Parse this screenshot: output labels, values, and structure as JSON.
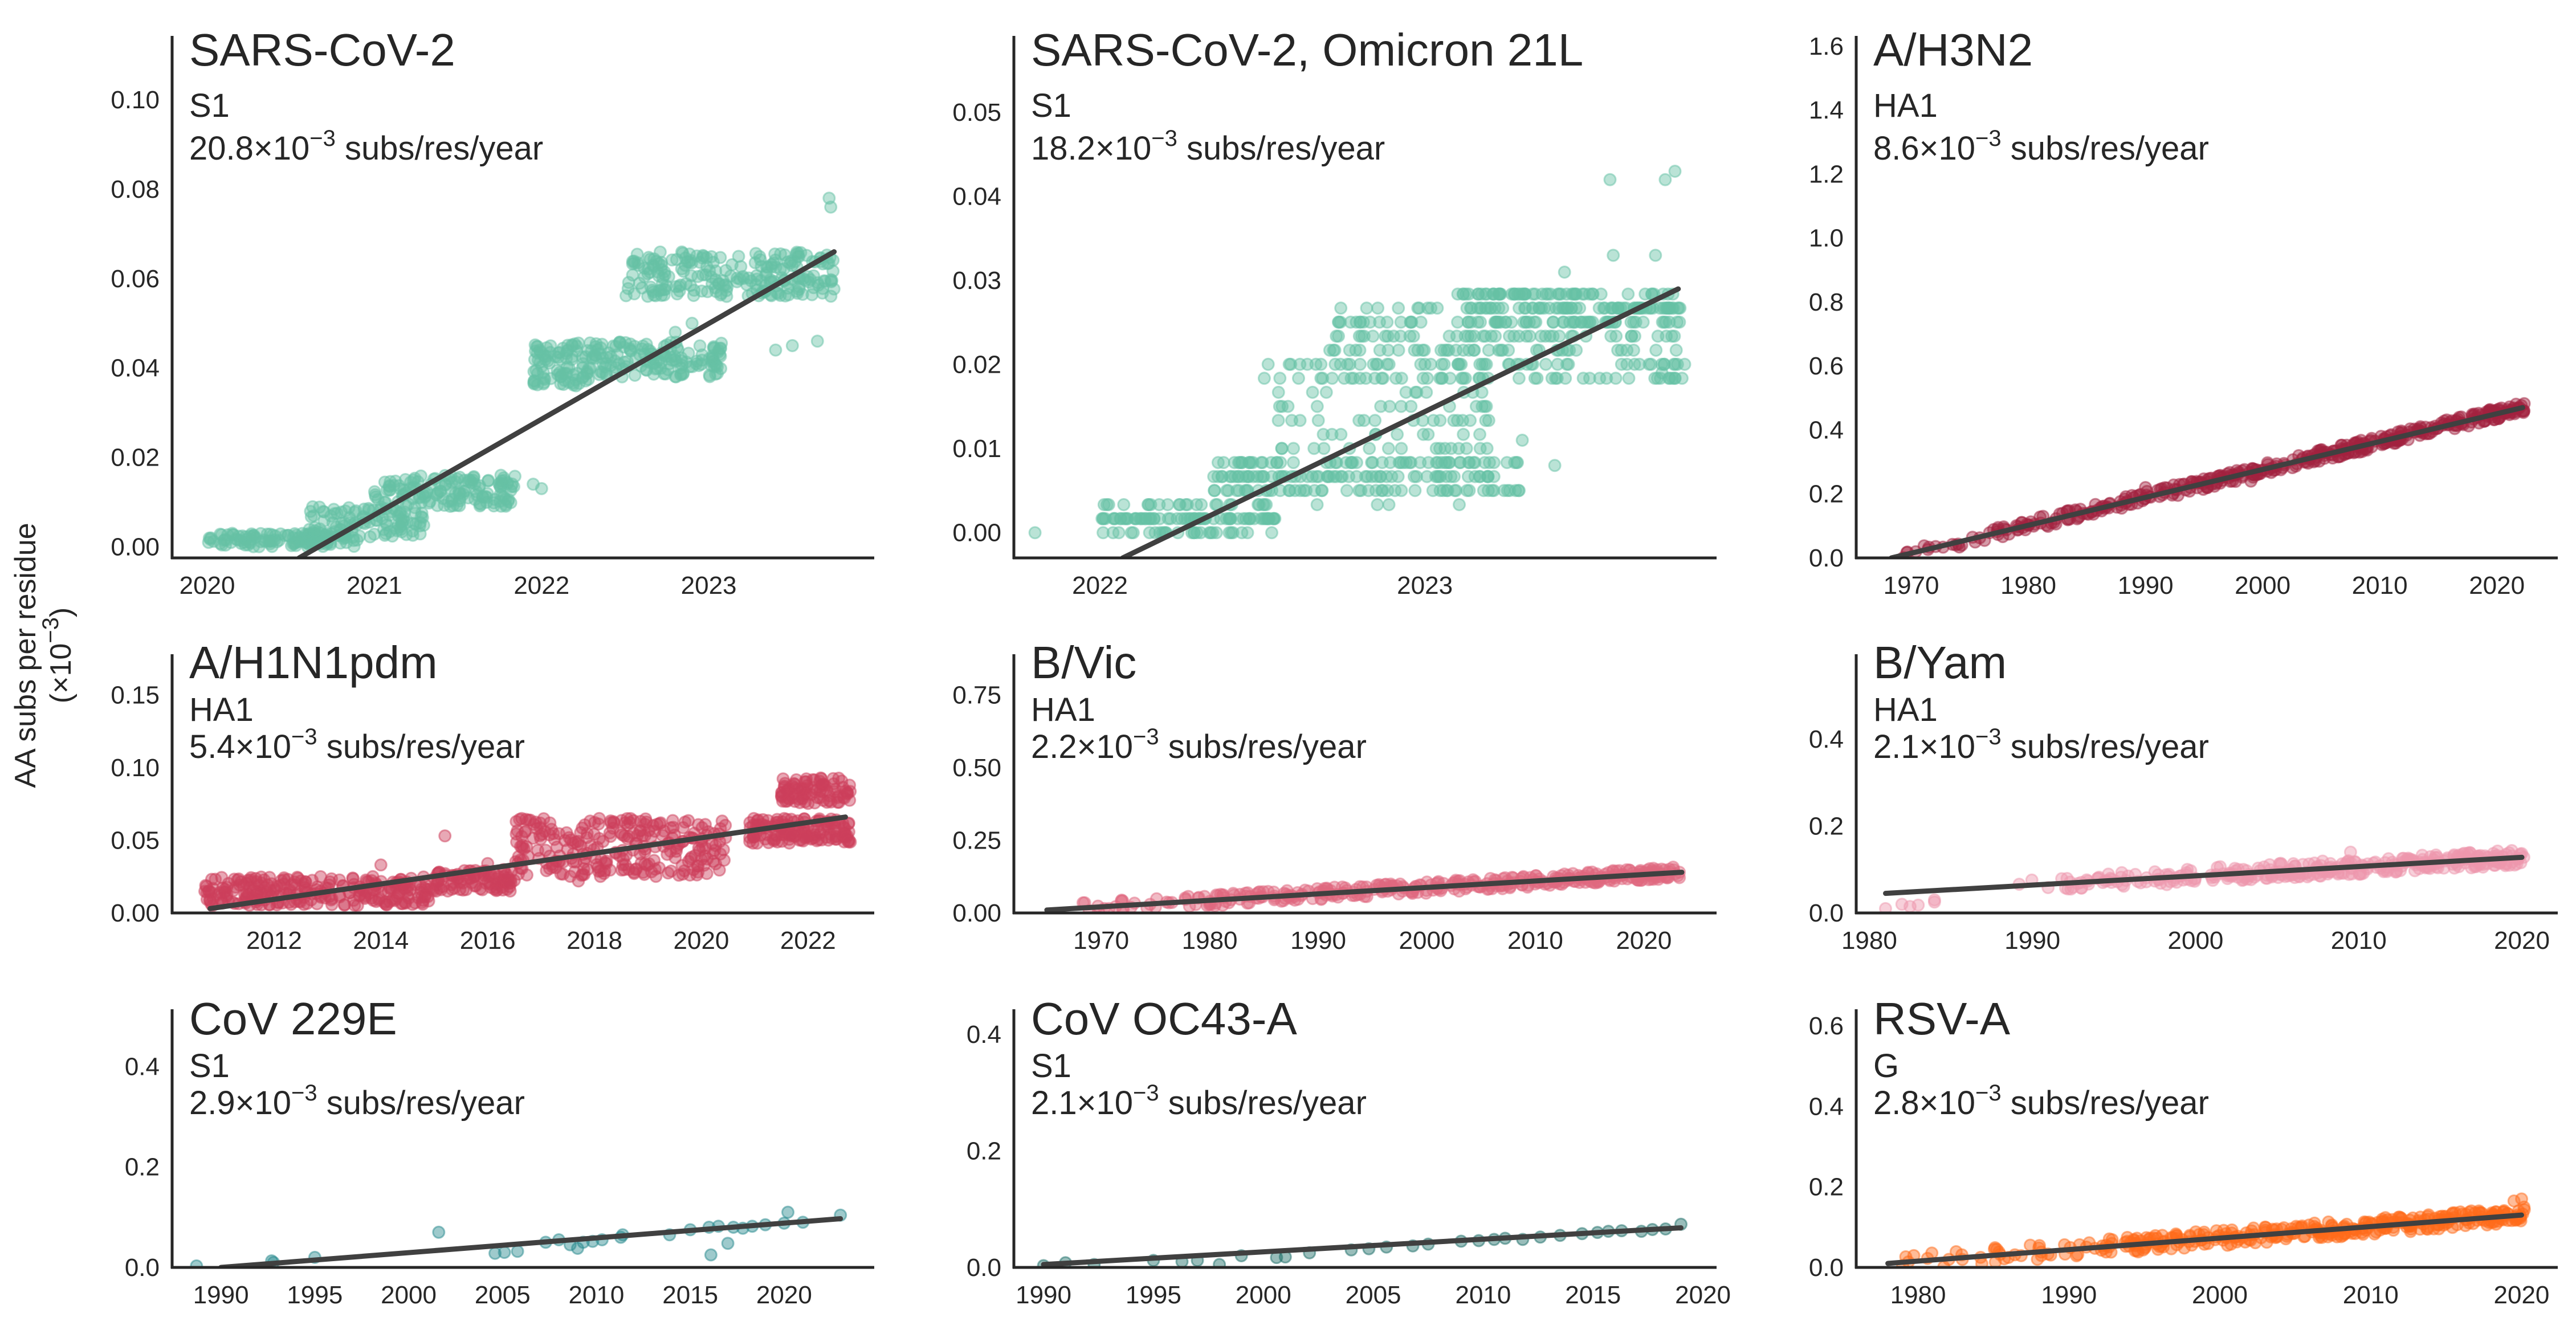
{
  "figure": {
    "ylabel_line1": "AA subs per residue",
    "ylabel_line2": "(×10",
    "ylabel_exp": "−3",
    "ylabel_close": ")",
    "fit_line_color": "#404040"
  },
  "chart_data": [
    {
      "type": "scatter",
      "title": "SARS-CoV-2",
      "subtitle": "S1",
      "rate_mantissa": "20.8",
      "rate_unit": "subs/res/year",
      "rate_label": "20.8×10^-3 subs/res/year",
      "xlabel": "",
      "ylabel": "AA subs per residue (×10^-3)",
      "color": "#66c2a5",
      "xlim": [
        2019.79,
        2023.99
      ],
      "ylim": [
        -0.0025,
        0.1143
      ],
      "xticks": [
        2020,
        2021,
        2022,
        2023
      ],
      "xtick_labels": [
        "2020",
        "2021",
        "2022",
        "2023"
      ],
      "yticks": [
        0.0,
        0.02,
        0.04,
        0.06,
        0.08,
        0.1
      ],
      "ytick_labels": [
        "0.00",
        "0.02",
        "0.04",
        "0.06",
        "0.08",
        "0.10"
      ],
      "fit_line": {
        "slope_per_year": 0.0208,
        "x": [
          2020.55,
          2023.75
        ],
        "y": [
          -0.0025,
          0.066
        ]
      },
      "clusters": [
        {
          "x": [
            2020.0,
            2020.9
          ],
          "y": [
            0.0,
            0.003
          ],
          "n": 120
        },
        {
          "x": [
            2020.6,
            2021.3
          ],
          "y": [
            0.002,
            0.009
          ],
          "n": 110
        },
        {
          "x": [
            2021.0,
            2021.85
          ],
          "y": [
            0.009,
            0.016
          ],
          "n": 140
        },
        {
          "x": [
            2021.95,
            2022.3
          ],
          "y": [
            0.036,
            0.046
          ],
          "n": 90
        },
        {
          "x": [
            2022.3,
            2023.1
          ],
          "y": [
            0.038,
            0.046
          ],
          "n": 140
        },
        {
          "x": [
            2022.5,
            2023.75
          ],
          "y": [
            0.056,
            0.066
          ],
          "n": 220
        }
      ],
      "outliers": [
        [
          2023.72,
          0.078
        ],
        [
          2023.73,
          0.076
        ],
        [
          2023.65,
          0.046
        ],
        [
          2023.4,
          0.044
        ],
        [
          2023.5,
          0.045
        ],
        [
          2021.95,
          0.014
        ],
        [
          2022.0,
          0.013
        ],
        [
          2020.15,
          0.003
        ],
        [
          2022.9,
          0.05
        ],
        [
          2022.8,
          0.048
        ]
      ]
    },
    {
      "type": "scatter",
      "title": "SARS-CoV-2, Omicron 21L",
      "subtitle": "S1",
      "rate_mantissa": "18.2",
      "rate_unit": "subs/res/year",
      "rate_label": "18.2×10^-3 subs/res/year",
      "color": "#66c2a5",
      "xlim": [
        2021.735,
        2023.898
      ],
      "ylim": [
        -0.003,
        0.0591
      ],
      "xticks": [
        2022,
        2023
      ],
      "xtick_labels": [
        "2022",
        "2023"
      ],
      "yticks": [
        0.0,
        0.01,
        0.02,
        0.03,
        0.04,
        0.05
      ],
      "ytick_labels": [
        "0.00",
        "0.01",
        "0.02",
        "0.03",
        "0.04",
        "0.05"
      ],
      "fit_line": {
        "slope_per_year": 0.0182,
        "x": [
          2022.07,
          2023.78
        ],
        "y": [
          -0.003,
          0.029
        ]
      },
      "levels_step": 0.00167,
      "clusters": [
        {
          "x": [
            2022.0,
            2022.55
          ],
          "y": [
            0.0,
            0.003
          ],
          "n": 120
        },
        {
          "x": [
            2022.35,
            2023.3
          ],
          "y": [
            0.004,
            0.009
          ],
          "n": 180
        },
        {
          "x": [
            2022.5,
            2023.2
          ],
          "y": [
            0.009,
            0.021
          ],
          "n": 110
        },
        {
          "x": [
            2022.7,
            2023.8
          ],
          "y": [
            0.018,
            0.027
          ],
          "n": 220
        },
        {
          "x": [
            2023.1,
            2023.8
          ],
          "y": [
            0.025,
            0.029
          ],
          "n": 140
        }
      ],
      "outliers": [
        [
          2021.8,
          0.0
        ],
        [
          2023.57,
          0.042
        ],
        [
          2023.74,
          0.042
        ],
        [
          2023.77,
          0.043
        ],
        [
          2023.58,
          0.033
        ],
        [
          2023.71,
          0.033
        ],
        [
          2023.43,
          0.031
        ],
        [
          2023.73,
          0.019
        ],
        [
          2023.3,
          0.011
        ],
        [
          2023.4,
          0.008
        ]
      ]
    },
    {
      "type": "scatter",
      "title": "A/H3N2",
      "subtitle": "HA1",
      "rate_mantissa": "8.6",
      "rate_unit": "subs/res/year",
      "rate_label": "8.6×10^-3 subs/res/year",
      "color": "#a2213f",
      "xlim": [
        1965.3,
        2025.2
      ],
      "ylim": [
        0.0,
        1.632
      ],
      "xticks": [
        1970,
        1980,
        1990,
        2000,
        2010,
        2020
      ],
      "xtick_labels": [
        "1970",
        "1980",
        "1990",
        "2000",
        "2010",
        "2020"
      ],
      "yticks": [
        0.0,
        0.2,
        0.4,
        0.6,
        0.8,
        1.0,
        1.2,
        1.4,
        1.6
      ],
      "ytick_labels": [
        "0.0",
        "0.2",
        "0.4",
        "0.6",
        "0.8",
        "1.0",
        "1.2",
        "1.4",
        "1.6"
      ],
      "fit_line": {
        "slope_per_year": 0.0086,
        "x": [
          1968.3,
          2022.2
        ],
        "y": [
          0.0,
          0.47
        ]
      },
      "band": {
        "x": [
          1968.0,
          2022.4
        ],
        "spread": 0.018,
        "n": 420
      },
      "outliers": [
        [
          1990.0,
          0.22
        ],
        [
          1999.0,
          0.24
        ],
        [
          1997.5,
          0.26
        ]
      ]
    },
    {
      "type": "scatter",
      "title": "A/H1N1pdm",
      "subtitle": "HA1",
      "rate_mantissa": "5.4",
      "rate_unit": "subs/res/year",
      "rate_label": "5.4×10^-3 subs/res/year",
      "color": "#cd3f5c",
      "xlim": [
        2010.09,
        2023.24
      ],
      "ylim": [
        0.0,
        0.178
      ],
      "xticks": [
        2012,
        2014,
        2016,
        2018,
        2020,
        2022
      ],
      "xtick_labels": [
        "2012",
        "2014",
        "2016",
        "2018",
        "2020",
        "2022"
      ],
      "yticks": [
        0.0,
        0.05,
        0.1,
        0.15
      ],
      "ytick_labels": [
        "0.00",
        "0.05",
        "0.10",
        "0.15"
      ],
      "fit_line": {
        "slope_per_year": 0.0054,
        "x": [
          2010.8,
          2022.7
        ],
        "y": [
          0.003,
          0.066
        ]
      },
      "clusters": [
        {
          "x": [
            2010.7,
            2015.0
          ],
          "y": [
            0.005,
            0.025
          ],
          "n": 260
        },
        {
          "x": [
            2015.0,
            2016.5
          ],
          "y": [
            0.015,
            0.03
          ],
          "n": 90
        },
        {
          "x": [
            2016.5,
            2020.5
          ],
          "y": [
            0.025,
            0.065
          ],
          "n": 260
        },
        {
          "x": [
            2020.9,
            2022.8
          ],
          "y": [
            0.048,
            0.065
          ],
          "n": 140
        },
        {
          "x": [
            2021.5,
            2022.8
          ],
          "y": [
            0.075,
            0.093
          ],
          "n": 90
        }
      ],
      "outliers": [
        [
          2015.2,
          0.053
        ],
        [
          2014.0,
          0.033
        ],
        [
          2016.0,
          0.034
        ],
        [
          2017.7,
          0.022
        ]
      ]
    },
    {
      "type": "scatter",
      "title": "B/Vic",
      "subtitle": "HA1",
      "rate_mantissa": "2.2",
      "rate_unit": "subs/res/year",
      "rate_label": "2.2×10^-3 subs/res/year",
      "color": "#e0687f",
      "xlim": [
        1961.96,
        2026.7
      ],
      "ylim": [
        0.0,
        0.89
      ],
      "xticks": [
        1970,
        1980,
        1990,
        2000,
        2010,
        2020
      ],
      "xtick_labels": [
        "1970",
        "1980",
        "1990",
        "2000",
        "2010",
        "2020"
      ],
      "yticks": [
        0.0,
        0.25,
        0.5,
        0.75
      ],
      "ytick_labels": [
        "0.00",
        "0.25",
        "0.50",
        "0.75"
      ],
      "fit_line": {
        "slope_per_year": 0.0022,
        "x": [
          1965.0,
          2023.5
        ],
        "y": [
          0.01,
          0.14
        ]
      },
      "band": {
        "x": [
          1965.0,
          2023.6
        ],
        "spread": 0.02,
        "n": 360
      },
      "outliers": [
        [
          1980.0,
          0.04
        ],
        [
          1975.0,
          0.02
        ]
      ]
    },
    {
      "type": "scatter",
      "title": "B/Yam",
      "subtitle": "HA1",
      "rate_mantissa": "2.1",
      "rate_unit": "subs/res/year",
      "rate_label": "2.1×10^-3 subs/res/year",
      "color": "#ee97ad",
      "xlim": [
        1979.2,
        2022.2
      ],
      "ylim": [
        0.0,
        0.595
      ],
      "xticks": [
        1980,
        1990,
        2000,
        2010,
        2020
      ],
      "xtick_labels": [
        "1980",
        "1990",
        "2000",
        "2010",
        "2020"
      ],
      "yticks": [
        0.0,
        0.2,
        0.4
      ],
      "ytick_labels": [
        "0.0",
        "0.2",
        "0.4"
      ],
      "fit_line": {
        "slope_per_year": 0.0021,
        "x": [
          1981.0,
          2020.0
        ],
        "y": [
          0.045,
          0.128
        ]
      },
      "band": {
        "x": [
          1989.0,
          2020.2
        ],
        "spread": 0.018,
        "n": 330
      },
      "outliers": [
        [
          1981.0,
          0.01
        ],
        [
          1982.0,
          0.02
        ],
        [
          1982.5,
          0.015
        ],
        [
          1983.0,
          0.018
        ],
        [
          1984.0,
          0.025
        ],
        [
          1984.0,
          0.03
        ],
        [
          2009.5,
          0.14
        ]
      ]
    },
    {
      "type": "scatter",
      "title": "CoV 229E",
      "subtitle": "S1",
      "rate_mantissa": "2.9",
      "rate_unit": "subs/res/year",
      "rate_label": "2.9×10^-3 subs/res/year",
      "color": "#27898e",
      "xlim": [
        1987.4,
        2024.8
      ],
      "ylim": [
        0.0,
        0.514
      ],
      "xticks": [
        1990,
        1995,
        2000,
        2005,
        2010,
        2015,
        2020
      ],
      "xtick_labels": [
        "1990",
        "1995",
        "2000",
        "2005",
        "2010",
        "2015",
        "2020"
      ],
      "yticks": [
        0.0,
        0.2,
        0.4
      ],
      "ytick_labels": [
        "0.0",
        "0.2",
        "0.4"
      ],
      "fit_line": {
        "slope_per_year": 0.0029,
        "x": [
          1990.0,
          2023.0
        ],
        "y": [
          0.0,
          0.097
        ]
      },
      "points": [
        [
          1988.7,
          0.003
        ],
        [
          1992.7,
          0.013
        ],
        [
          1992.8,
          0.01
        ],
        [
          1995.0,
          0.02
        ],
        [
          2001.6,
          0.07
        ],
        [
          2004.6,
          0.028
        ],
        [
          2005.1,
          0.03
        ],
        [
          2005.8,
          0.032
        ],
        [
          2007.3,
          0.05
        ],
        [
          2008.0,
          0.055
        ],
        [
          2008.6,
          0.045
        ],
        [
          2009.0,
          0.038
        ],
        [
          2009.3,
          0.05
        ],
        [
          2009.8,
          0.052
        ],
        [
          2010.3,
          0.055
        ],
        [
          2011.3,
          0.06
        ],
        [
          2011.4,
          0.065
        ],
        [
          2013.9,
          0.065
        ],
        [
          2015.0,
          0.075
        ],
        [
          2016.0,
          0.08
        ],
        [
          2016.1,
          0.025
        ],
        [
          2016.5,
          0.082
        ],
        [
          2017.0,
          0.048
        ],
        [
          2017.3,
          0.08
        ],
        [
          2017.8,
          0.078
        ],
        [
          2018.3,
          0.082
        ],
        [
          2019.0,
          0.085
        ],
        [
          2020.0,
          0.088
        ],
        [
          2020.2,
          0.11
        ],
        [
          2021.0,
          0.09
        ],
        [
          2023.0,
          0.104
        ]
      ]
    },
    {
      "type": "scatter",
      "title": "CoV OC43-A",
      "subtitle": "S1",
      "rate_mantissa": "2.1",
      "rate_unit": "subs/res/year",
      "rate_label": "2.1×10^-3 subs/res/year",
      "color": "#1c6d67",
      "xlim": [
        1988.65,
        2020.62
      ],
      "ylim": [
        0.0,
        0.443
      ],
      "xticks": [
        1990,
        1995,
        2000,
        2005,
        2010,
        2015,
        2020
      ],
      "xtick_labels": [
        "1990",
        "1995",
        "2000",
        "2005",
        "2010",
        "2015",
        "2020"
      ],
      "yticks": [
        0.0,
        0.2,
        0.4
      ],
      "ytick_labels": [
        "0.0",
        "0.2",
        "0.4"
      ],
      "fit_line": {
        "slope_per_year": 0.0021,
        "x": [
          1990.0,
          2019.0
        ],
        "y": [
          0.005,
          0.068
        ]
      },
      "points": [
        [
          1990.0,
          0.003
        ],
        [
          1991.0,
          0.008
        ],
        [
          1992.3,
          0.005
        ],
        [
          1995.0,
          0.012
        ],
        [
          1996.3,
          0.01
        ],
        [
          1997.0,
          0.012
        ],
        [
          1998.0,
          0.005
        ],
        [
          1999.0,
          0.02
        ],
        [
          2000.6,
          0.017
        ],
        [
          2001.0,
          0.018
        ],
        [
          2002.1,
          0.025
        ],
        [
          2004.0,
          0.03
        ],
        [
          2004.8,
          0.032
        ],
        [
          2005.6,
          0.035
        ],
        [
          2006.8,
          0.037
        ],
        [
          2007.5,
          0.04
        ],
        [
          2009.0,
          0.045
        ],
        [
          2009.8,
          0.046
        ],
        [
          2010.5,
          0.048
        ],
        [
          2011.0,
          0.05
        ],
        [
          2011.8,
          0.048
        ],
        [
          2012.6,
          0.052
        ],
        [
          2013.5,
          0.055
        ],
        [
          2014.5,
          0.058
        ],
        [
          2015.2,
          0.06
        ],
        [
          2015.7,
          0.062
        ],
        [
          2016.3,
          0.063
        ],
        [
          2017.2,
          0.062
        ],
        [
          2017.7,
          0.065
        ],
        [
          2018.3,
          0.066
        ],
        [
          2019.0,
          0.074
        ]
      ]
    },
    {
      "type": "scatter",
      "title": "RSV-A",
      "subtitle": "G",
      "rate_mantissa": "2.8",
      "rate_unit": "subs/res/year",
      "rate_label": "2.8×10^-3 subs/res/year",
      "color": "#ff6b1a",
      "xlim": [
        1975.9,
        2022.4
      ],
      "ylim": [
        0.0,
        0.641
      ],
      "xticks": [
        1980,
        1990,
        2000,
        2010,
        2020
      ],
      "xtick_labels": [
        "1980",
        "1990",
        "2000",
        "2010",
        "2020"
      ],
      "yticks": [
        0.0,
        0.2,
        0.4,
        0.6
      ],
      "ytick_labels": [
        "0.0",
        "0.2",
        "0.4",
        "0.6"
      ],
      "fit_line": {
        "slope_per_year": 0.0028,
        "x": [
          1978.0,
          2020.0
        ],
        "y": [
          0.01,
          0.13
        ]
      },
      "band": {
        "x": [
          1978.0,
          2020.2
        ],
        "spread": 0.02,
        "n": 360
      },
      "outliers": [
        [
          2019.5,
          0.165
        ],
        [
          2020.0,
          0.17
        ],
        [
          2003.0,
          0.1
        ]
      ]
    }
  ]
}
